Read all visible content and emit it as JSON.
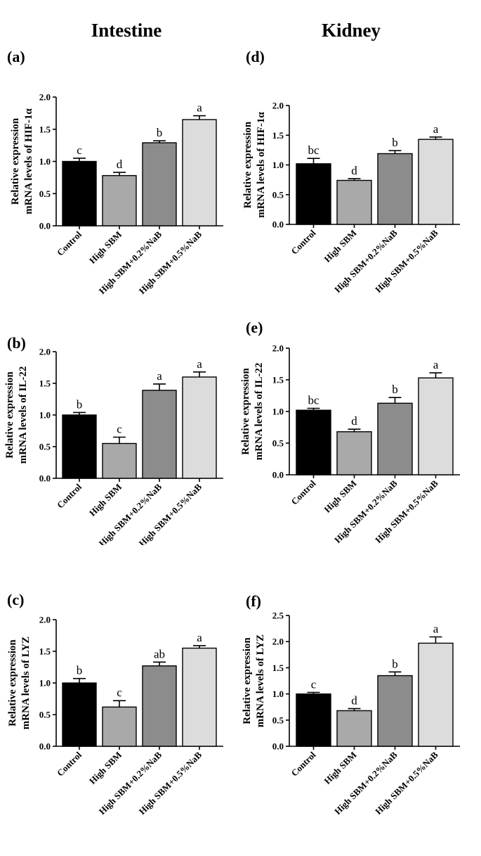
{
  "figure": {
    "columns": [
      "Intestine",
      "Kidney"
    ]
  },
  "chart_data": [
    {
      "type": "bar",
      "panel_label": "(a)",
      "categories": [
        "Control",
        "High SBM",
        "High SBM+0.2%NaB",
        "High SBM+0.5%NaB"
      ],
      "values": [
        1.0,
        0.78,
        1.29,
        1.65
      ],
      "errors": [
        0.05,
        0.05,
        0.03,
        0.06
      ],
      "significance": [
        "c",
        "d",
        "b",
        "a"
      ],
      "ylabel_lines": [
        "Relative expression",
        "mRNA levels of HIF-1α"
      ],
      "ylim": [
        0,
        2.0
      ],
      "yticks": [
        "0.0",
        "0.5",
        "1.0",
        "1.5",
        "2.0"
      ],
      "colors": [
        "#000000",
        "#a9a9a9",
        "#8c8c8c",
        "#dcdcdc"
      ]
    },
    {
      "type": "bar",
      "panel_label": "(b)",
      "categories": [
        "Control",
        "High SBM",
        "High SBM+0.2%NaB",
        "High SBM+0.5%NaB"
      ],
      "values": [
        1.0,
        0.55,
        1.39,
        1.6
      ],
      "errors": [
        0.04,
        0.1,
        0.1,
        0.08
      ],
      "significance": [
        "b",
        "c",
        "a",
        "a"
      ],
      "ylabel_lines": [
        "Relative expression",
        "mRNA levels of IL-22"
      ],
      "ylim": [
        0,
        2.0
      ],
      "yticks": [
        "0.0",
        "0.5",
        "1.0",
        "1.5",
        "2.0"
      ],
      "colors": [
        "#000000",
        "#a9a9a9",
        "#8c8c8c",
        "#dcdcdc"
      ]
    },
    {
      "type": "bar",
      "panel_label": "(c)",
      "categories": [
        "Control",
        "High SBM",
        "High SBM+0.2%NaB",
        "High SBM+0.5%NaB"
      ],
      "values": [
        1.0,
        0.62,
        1.27,
        1.55
      ],
      "errors": [
        0.07,
        0.1,
        0.06,
        0.04
      ],
      "significance": [
        "b",
        "c",
        "ab",
        "a"
      ],
      "ylabel_lines": [
        "Relative expression",
        "mRNA levels of  LYZ"
      ],
      "ylim": [
        0,
        2.0
      ],
      "yticks": [
        "0.0",
        "0.5",
        "1.0",
        "1.5",
        "2.0"
      ],
      "colors": [
        "#000000",
        "#a9a9a9",
        "#8c8c8c",
        "#dcdcdc"
      ]
    },
    {
      "type": "bar",
      "panel_label": "(d)",
      "categories": [
        "Control",
        "High SBM",
        "High SBM+0.2%NaB",
        "High SBM+0.5%NaB"
      ],
      "values": [
        1.02,
        0.74,
        1.19,
        1.43
      ],
      "errors": [
        0.09,
        0.03,
        0.05,
        0.04
      ],
      "significance": [
        "bc",
        "d",
        "b",
        "a"
      ],
      "ylabel_lines": [
        "Relative expression",
        "mRNA levels of HIF-1α"
      ],
      "ylim": [
        0,
        2.0
      ],
      "yticks": [
        "0.0",
        "0.5",
        "1.0",
        "1.5",
        "2.0"
      ],
      "colors": [
        "#000000",
        "#a9a9a9",
        "#8c8c8c",
        "#dcdcdc"
      ]
    },
    {
      "type": "bar",
      "panel_label": "(e)",
      "categories": [
        "Control",
        "High SBM",
        "High SBM+0.2%NaB",
        "High SBM+0.5%NaB"
      ],
      "values": [
        1.02,
        0.68,
        1.13,
        1.53
      ],
      "errors": [
        0.03,
        0.04,
        0.09,
        0.08
      ],
      "significance": [
        "bc",
        "d",
        "b",
        "a"
      ],
      "ylabel_lines": [
        "Relative expression",
        "mRNA levels of IL-22"
      ],
      "ylim": [
        0,
        2.0
      ],
      "yticks": [
        "0.0",
        "0.5",
        "1.0",
        "1.5",
        "2.0"
      ],
      "colors": [
        "#000000",
        "#a9a9a9",
        "#8c8c8c",
        "#dcdcdc"
      ]
    },
    {
      "type": "bar",
      "panel_label": "(f)",
      "categories": [
        "Control",
        "High SBM",
        "High SBM+0.2%NaB",
        "High SBM+0.5%NaB"
      ],
      "values": [
        1.0,
        0.68,
        1.35,
        1.97
      ],
      "errors": [
        0.03,
        0.04,
        0.07,
        0.12
      ],
      "significance": [
        "c",
        "d",
        "b",
        "a"
      ],
      "ylabel_lines": [
        "Relative expression",
        "mRNA levels of  LYZ"
      ],
      "ylim": [
        0,
        2.5
      ],
      "yticks": [
        "0.0",
        "0.5",
        "1.0",
        "1.5",
        "2.0",
        "2.5"
      ],
      "colors": [
        "#000000",
        "#a9a9a9",
        "#8c8c8c",
        "#dcdcdc"
      ]
    }
  ]
}
